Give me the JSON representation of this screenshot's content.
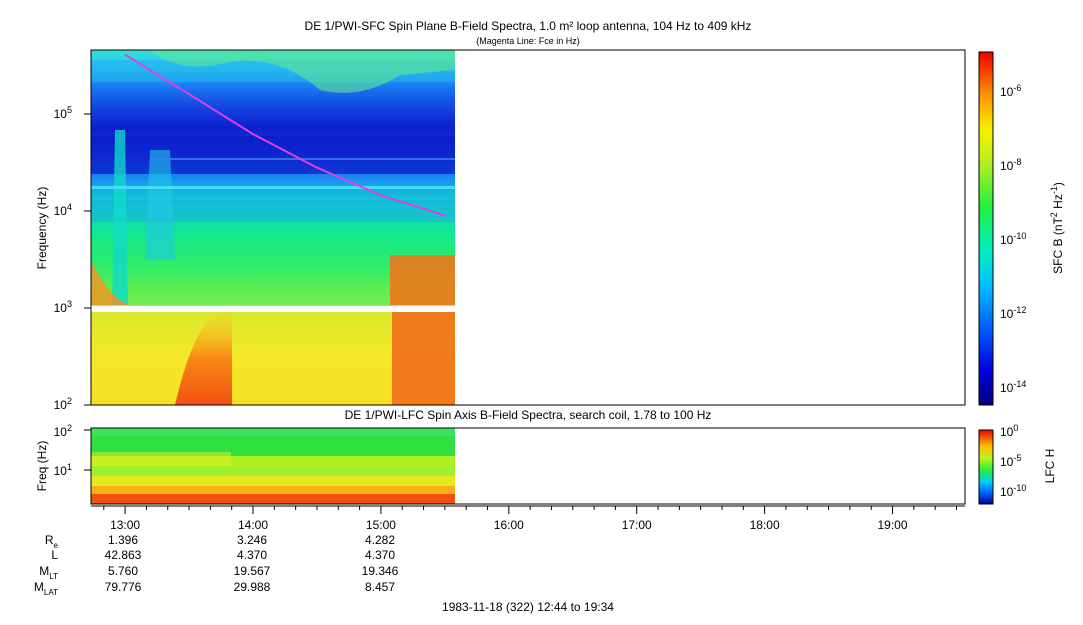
{
  "chart_data": [
    {
      "type": "heatmap",
      "title": "DE 1/PWI-SFC  Spin Plane B-Field Spectra, 1.0 m² loop antenna, 104 Hz to 409 kHz",
      "subtitle": "(Magenta Line: Fce in Hz)",
      "ylabel": "Frequency (Hz)",
      "yscale": "log",
      "ylim": [
        100,
        409000
      ],
      "y_ticks": [
        {
          "value": 100,
          "base": "10",
          "exp": "2"
        },
        {
          "value": 1000,
          "base": "10",
          "exp": "3"
        },
        {
          "value": 10000,
          "base": "10",
          "exp": "4"
        },
        {
          "value": 100000,
          "base": "10",
          "exp": "5"
        }
      ],
      "xlim": [
        "12:44",
        "19:34"
      ],
      "data_end": "15:35",
      "colorbar": {
        "label": "SFC B (nT² Hz⁻¹)",
        "label_base": "SFC B (nT",
        "label_sup1": "2",
        "label_mid": " Hz",
        "label_sup2": "-1",
        "label_end": ")",
        "scale": "log",
        "range": [
          "1e-15",
          "1e-5"
        ],
        "ticks": [
          {
            "base": "10",
            "exp": "-6"
          },
          {
            "base": "10",
            "exp": "-8"
          },
          {
            "base": "10",
            "exp": "-10"
          },
          {
            "base": "10",
            "exp": "-12"
          },
          {
            "base": "10",
            "exp": "-14"
          }
        ]
      },
      "overlay_fce": [
        {
          "t": "13:00",
          "f": 409000
        },
        {
          "t": "13:30",
          "f": 160000
        },
        {
          "t": "14:00",
          "f": 62000
        },
        {
          "t": "14:30",
          "f": 28000
        },
        {
          "t": "15:00",
          "f": 14500
        },
        {
          "t": "15:30",
          "f": 9000
        }
      ],
      "colors": {
        "fce_line": "#e040e0"
      }
    },
    {
      "type": "heatmap",
      "title": "DE 1/PWI-LFC  Spin Axis B-Field Spectra, search coil, 1.78 to 100 Hz",
      "ylabel": "Freq (Hz)",
      "yscale": "log",
      "ylim": [
        1.78,
        100
      ],
      "y_ticks": [
        {
          "value": 10,
          "base": "10",
          "exp": "1"
        },
        {
          "value": 100,
          "base": "10",
          "exp": "2"
        }
      ],
      "colorbar": {
        "label": "LFC H",
        "scale": "log",
        "ticks": [
          {
            "base": "10",
            "exp": "0"
          },
          {
            "base": "10",
            "exp": "-5"
          },
          {
            "base": "10",
            "exp": "-10"
          }
        ]
      }
    }
  ],
  "time_axis": {
    "ticks": [
      "13:00",
      "14:00",
      "15:00",
      "16:00",
      "17:00",
      "18:00",
      "19:00"
    ]
  },
  "ephemeris": {
    "rows": [
      {
        "label": "R",
        "sub": "e",
        "values": [
          "1.396",
          "3.246",
          "4.282"
        ]
      },
      {
        "label": "L",
        "sub": "",
        "values": [
          "42.863",
          "4.370",
          "4.370"
        ]
      },
      {
        "label": "M",
        "sub": "LT",
        "values": [
          "5.760",
          "19.567",
          "19.346"
        ]
      },
      {
        "label": "M",
        "sub": "LAT",
        "values": [
          "79.776",
          "29.988",
          "8.457"
        ]
      }
    ]
  },
  "footer": "1983-11-18 (322) 12:44 to 19:34"
}
